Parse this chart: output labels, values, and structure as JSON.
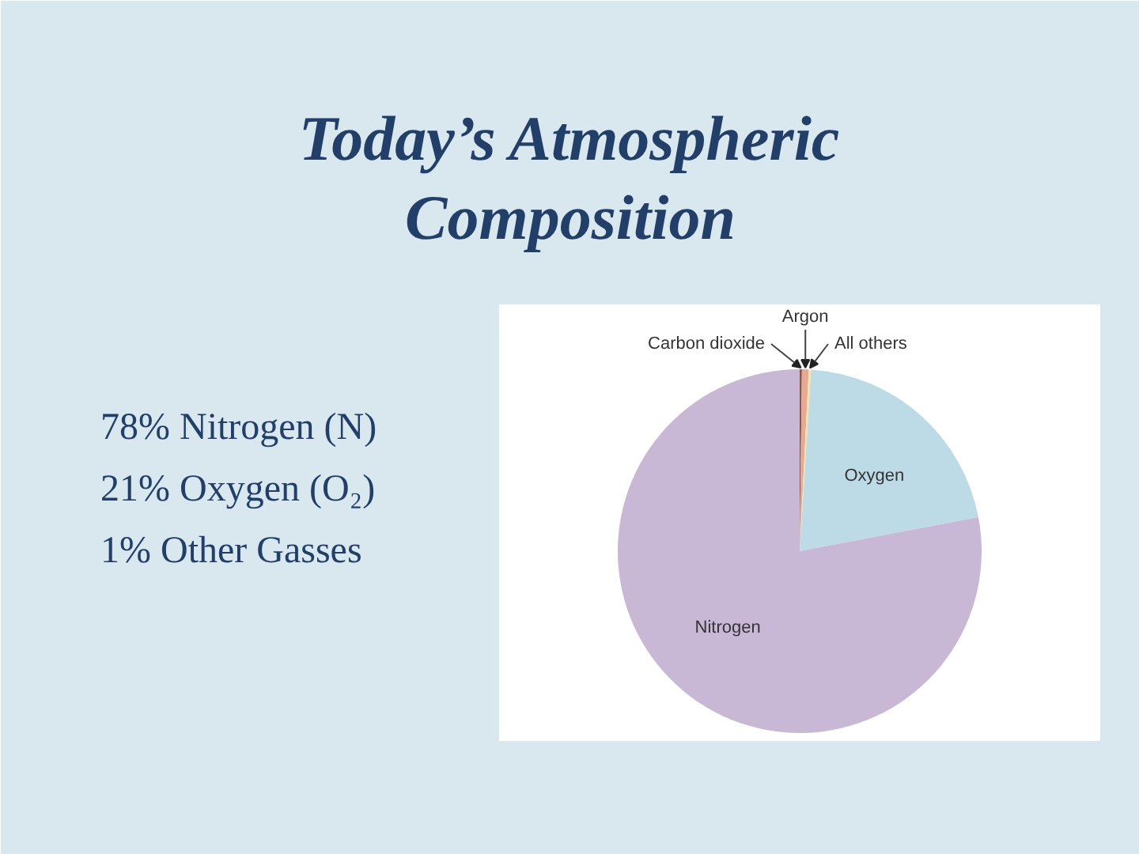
{
  "chart_data": {
    "type": "pie",
    "title": "Today’s Atmospheric Composition",
    "categories": [
      "Carbon dioxide",
      "Argon",
      "All others",
      "Oxygen",
      "Nitrogen"
    ],
    "values": [
      0.2,
      0.6,
      0.2,
      21,
      78
    ],
    "colors": [
      "#8b5a3c",
      "#e8a898",
      "#f2e799",
      "#bddbe7",
      "#c9b7d6"
    ],
    "annotations": [
      "78% Nitrogen (N)",
      "21% Oxygen (O₂)",
      "1% Other Gasses"
    ]
  }
}
